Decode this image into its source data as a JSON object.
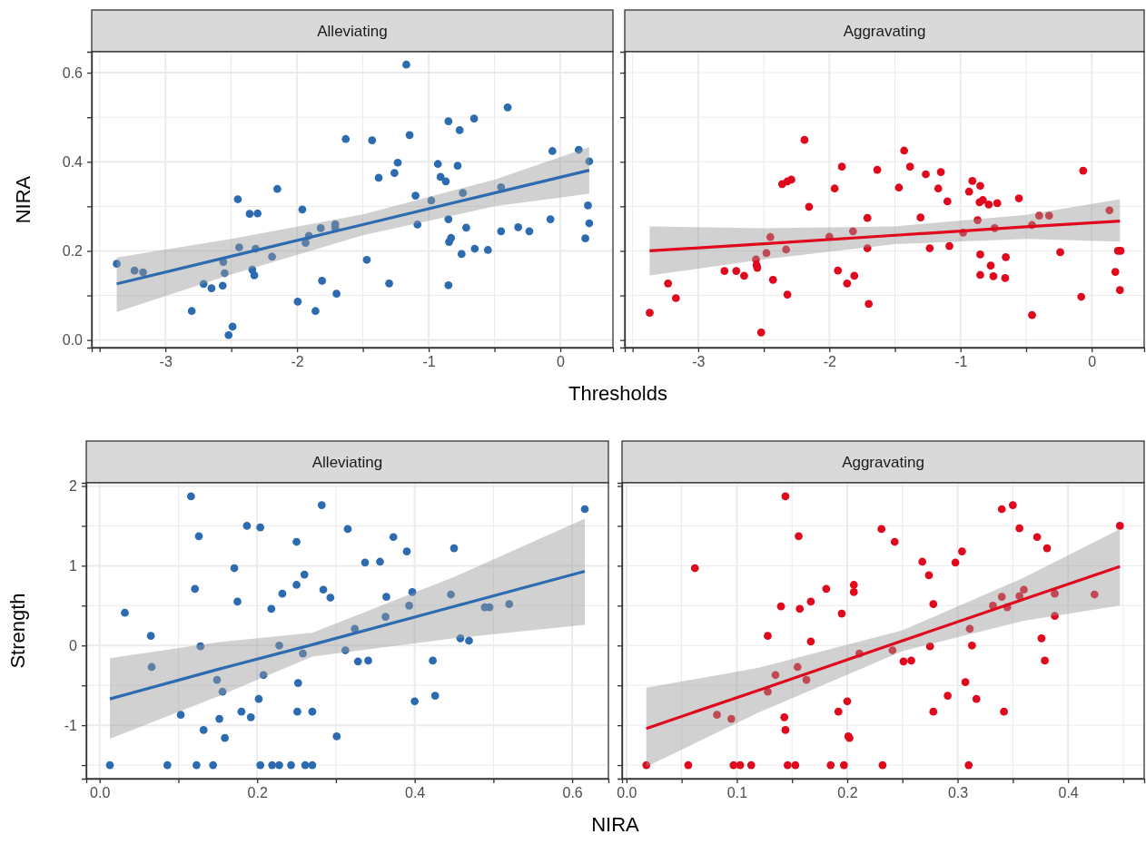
{
  "chart_data": [
    {
      "type": "scatter",
      "title": "Alleviating",
      "xlabel": "Thresholds",
      "ylabel": "NIRA",
      "grid": true,
      "xlim": [
        -3.56,
        0.4
      ],
      "xticks": [
        {
          "value": -3.5,
          "label": null
        },
        -3,
        {
          "value": -2.5,
          "label": null
        },
        -2,
        {
          "value": -1.5,
          "label": null
        },
        -1,
        {
          "value": -0.5,
          "label": null
        },
        0
      ],
      "ylim": [
        -0.017,
        0.647
      ],
      "yticks": [
        {
          "value": 0,
          "label": "0.0"
        },
        {
          "value": 0.1,
          "label": null
        },
        {
          "value": 0.2,
          "label": "0.2"
        },
        {
          "value": 0.3,
          "label": null
        },
        {
          "value": 0.4,
          "label": "0.4"
        },
        {
          "value": 0.5,
          "label": null
        },
        {
          "value": 0.6,
          "label": "0.6"
        }
      ],
      "series": [
        {
          "marker": "circle",
          "color": "#2c6bb0",
          "x": [
            -3.37,
            -3.235,
            -3.17,
            -2.8,
            -2.71,
            -2.65,
            -2.565,
            -2.56,
            -2.55,
            -2.52,
            -2.49,
            -2.45,
            -2.44,
            -2.36,
            -2.3,
            -2.34,
            -2.325,
            -2.315,
            -2.19,
            -2.15,
            -1.995,
            -1.96,
            -1.935,
            -1.91,
            -1.86,
            -1.82,
            -1.81,
            -1.71,
            -1.71,
            -1.7,
            -1.63,
            -1.47,
            -1.43,
            -1.38,
            -1.3,
            -1.26,
            -1.235,
            -1.17,
            -1.145,
            -1.1,
            -1.085,
            -0.98,
            -0.93,
            -0.91,
            -0.87,
            -0.85,
            -0.85,
            -0.85,
            -0.845,
            -0.83,
            -0.78,
            -0.765,
            -0.75,
            -0.74,
            -0.715,
            -0.655,
            -0.65,
            -0.55,
            -0.45,
            -0.45,
            -0.4,
            -0.32,
            -0.235,
            -0.075,
            -0.06,
            0.14,
            0.19,
            0.21,
            0.22,
            0.22
          ],
          "values": [
            0.171,
            0.156,
            0.152,
            0.065,
            0.126,
            0.116,
            0.122,
            0.175,
            0.15,
            0.011,
            0.03,
            0.316,
            0.208,
            0.283,
            0.284,
            0.158,
            0.145,
            0.205,
            0.187,
            0.339,
            0.086,
            0.293,
            0.218,
            0.234,
            0.065,
            0.251,
            0.133,
            0.26,
            0.252,
            0.104,
            0.451,
            0.18,
            0.448,
            0.364,
            0.127,
            0.375,
            0.398,
            0.618,
            0.46,
            0.324,
            0.259,
            0.313,
            0.395,
            0.366,
            0.356,
            0.123,
            0.271,
            0.491,
            0.22,
            0.229,
            0.391,
            0.471,
            0.193,
            0.33,
            0.252,
            0.497,
            0.205,
            0.202,
            0.244,
            0.343,
            0.522,
            0.253,
            0.244,
            0.271,
            0.424,
            0.427,
            0.228,
            0.302,
            0.262,
            0.401
          ]
        },
        {
          "type": "line",
          "color": "#2c6bb0",
          "x": [
            -3.37,
            -2.5,
            -1.5,
            -0.5,
            0.22
          ],
          "values": [
            0.126,
            0.188,
            0.259,
            0.33,
            0.381
          ],
          "lower": [
            0.063,
            0.147,
            0.235,
            0.3,
            0.328
          ],
          "upper": [
            0.185,
            0.227,
            0.282,
            0.36,
            0.433
          ]
        }
      ]
    },
    {
      "type": "scatter",
      "title": "Aggravating",
      "grid": true,
      "tick_labels": "x",
      "xlim": [
        -3.56,
        0.4
      ],
      "xticks": [
        {
          "value": -3.5,
          "label": null
        },
        -3,
        {
          "value": -2.5,
          "label": null
        },
        -2,
        {
          "value": -1.5,
          "label": null
        },
        -1,
        {
          "value": -0.5,
          "label": null
        },
        0
      ],
      "ylim": [
        -0.017,
        0.647
      ],
      "yticks": [
        {
          "value": 0,
          "label": null
        },
        {
          "value": 0.1,
          "label": null
        },
        {
          "value": 0.2,
          "label": null
        },
        {
          "value": 0.3,
          "label": null
        },
        {
          "value": 0.4,
          "label": null
        },
        {
          "value": 0.5,
          "label": null
        },
        {
          "value": 0.6,
          "label": null
        }
      ],
      "series": [
        {
          "marker": "circle",
          "color": "#e0081c",
          "x": [
            -3.37,
            -3.23,
            -3.17,
            -2.8,
            -2.71,
            -2.65,
            -2.56,
            -2.555,
            -2.55,
            -2.52,
            -2.48,
            -2.45,
            -2.43,
            -2.36,
            -2.32,
            -2.29,
            -2.33,
            -2.32,
            -2.19,
            -2.155,
            -2.0,
            -1.96,
            -1.935,
            -1.905,
            -1.865,
            -1.82,
            -1.81,
            -1.71,
            -1.71,
            -1.7,
            -1.635,
            -1.47,
            -1.43,
            -1.385,
            -1.305,
            -1.265,
            -1.235,
            -1.17,
            -1.15,
            -1.1,
            -1.085,
            -0.98,
            -0.935,
            -0.91,
            -0.87,
            -0.855,
            -0.85,
            -0.85,
            -0.85,
            -0.83,
            -0.785,
            -0.77,
            -0.75,
            -0.74,
            -0.72,
            -0.66,
            -0.655,
            -0.555,
            -0.455,
            -0.455,
            -0.4,
            -0.325,
            -0.24,
            -0.08,
            -0.065,
            0.135,
            0.18,
            0.2,
            0.22,
            0.215
          ],
          "values": [
            0.061,
            0.127,
            0.094,
            0.155,
            0.155,
            0.144,
            0.181,
            0.168,
            0.162,
            0.017,
            0.195,
            0.231,
            0.135,
            0.35,
            0.356,
            0.36,
            0.203,
            0.102,
            0.449,
            0.299,
            0.232,
            0.34,
            0.156,
            0.389,
            0.127,
            0.244,
            0.144,
            0.274,
            0.206,
            0.081,
            0.382,
            0.342,
            0.425,
            0.389,
            0.275,
            0.372,
            0.206,
            0.34,
            0.377,
            0.311,
            0.211,
            0.241,
            0.333,
            0.357,
            0.269,
            0.309,
            0.146,
            0.192,
            0.346,
            0.314,
            0.304,
            0.167,
            0.143,
            0.251,
            0.307,
            0.139,
            0.186,
            0.318,
            0.258,
            0.056,
            0.279,
            0.279,
            0.197,
            0.097,
            0.38,
            0.291,
            0.153,
            0.2,
            0.2,
            0.112
          ]
        },
        {
          "type": "line",
          "color": "#e0081c",
          "x": [
            -3.37,
            -2.5,
            -1.5,
            -0.5,
            0.215
          ],
          "values": [
            0.2,
            0.216,
            0.235,
            0.254,
            0.267
          ],
          "lower": [
            0.145,
            0.181,
            0.215,
            0.227,
            0.221
          ],
          "upper": [
            0.255,
            0.251,
            0.255,
            0.281,
            0.316
          ]
        }
      ]
    },
    {
      "type": "scatter",
      "title": "Alleviating",
      "xlabel": "NIRA",
      "ylabel": "Strength",
      "grid": true,
      "xlim": [
        -0.017,
        0.646
      ],
      "xticks": [
        {
          "value": 0,
          "label": "0.0"
        },
        {
          "value": 0.1,
          "label": null
        },
        {
          "value": 0.2,
          "label": "0.2"
        },
        {
          "value": 0.3,
          "label": null
        },
        {
          "value": 0.4,
          "label": "0.4"
        },
        {
          "value": 0.5,
          "label": null
        },
        {
          "value": 0.6,
          "label": "0.6"
        }
      ],
      "ylim": [
        -1.67,
        2.04
      ],
      "yticks": [
        {
          "value": -1.5,
          "label": null
        },
        -1,
        {
          "value": -0.5,
          "label": null
        },
        0,
        {
          "value": 0.5,
          "label": null
        },
        1,
        {
          "value": 1.5,
          "label": null
        },
        2
      ],
      "series": [
        {
          "marker": "circle",
          "color": "#2c6bb0",
          "x": [
            0.013,
            0.032,
            0.065,
            0.066,
            0.086,
            0.103,
            0.116,
            0.121,
            0.123,
            0.126,
            0.128,
            0.132,
            0.144,
            0.149,
            0.152,
            0.156,
            0.159,
            0.171,
            0.175,
            0.18,
            0.187,
            0.192,
            0.202,
            0.204,
            0.204,
            0.208,
            0.218,
            0.219,
            0.228,
            0.228,
            0.232,
            0.243,
            0.25,
            0.25,
            0.251,
            0.252,
            0.258,
            0.26,
            0.261,
            0.27,
            0.27,
            0.282,
            0.284,
            0.293,
            0.301,
            0.312,
            0.315,
            0.324,
            0.328,
            0.337,
            0.341,
            0.356,
            0.363,
            0.364,
            0.373,
            0.39,
            0.393,
            0.397,
            0.4,
            0.423,
            0.426,
            0.446,
            0.45,
            0.458,
            0.469,
            0.489,
            0.495,
            0.52,
            0.616
          ],
          "values": [
            -1.5,
            0.41,
            0.12,
            -0.27,
            -1.5,
            -0.87,
            1.87,
            0.71,
            -1.5,
            1.37,
            -0.01,
            -1.06,
            -1.5,
            -0.43,
            -0.92,
            -0.58,
            -1.16,
            0.97,
            0.55,
            -0.83,
            1.5,
            -0.9,
            -0.67,
            1.48,
            -1.5,
            -0.37,
            0.46,
            -1.5,
            -1.5,
            0.0,
            0.65,
            -1.5,
            1.3,
            0.76,
            -0.83,
            -0.47,
            -0.1,
            0.89,
            -1.5,
            -1.5,
            -0.83,
            1.76,
            0.7,
            0.6,
            -1.14,
            -0.06,
            1.46,
            0.21,
            -0.2,
            1.04,
            -0.19,
            1.05,
            0.36,
            0.61,
            1.36,
            1.18,
            0.5,
            0.67,
            -0.7,
            -0.19,
            -0.63,
            0.64,
            1.22,
            0.09,
            0.06,
            0.48,
            0.48,
            0.52,
            1.71
          ]
        },
        {
          "type": "line",
          "color": "#2c6bb0",
          "x": [
            0.013,
            0.15,
            0.27,
            0.45,
            0.616
          ],
          "values": [
            -0.67,
            -0.3,
            0.01,
            0.49,
            0.93
          ],
          "lower": [
            -1.17,
            -0.64,
            -0.14,
            0.09,
            0.26
          ],
          "upper": [
            -0.16,
            0.04,
            0.16,
            0.86,
            1.59
          ]
        }
      ]
    },
    {
      "type": "scatter",
      "title": "Aggravating",
      "grid": true,
      "tick_labels": "x",
      "xlim": [
        -0.004,
        0.469
      ],
      "xticks": [
        {
          "value": 0,
          "label": "0.0"
        },
        {
          "value": 0.05,
          "label": null
        },
        {
          "value": 0.1,
          "label": "0.1"
        },
        {
          "value": 0.15,
          "label": null
        },
        {
          "value": 0.2,
          "label": "0.2"
        },
        {
          "value": 0.25,
          "label": null
        },
        {
          "value": 0.3,
          "label": "0.3"
        },
        {
          "value": 0.35,
          "label": null
        },
        {
          "value": 0.4,
          "label": "0.4"
        },
        {
          "value": 0.45,
          "label": null
        }
      ],
      "ylim": [
        -1.67,
        2.04
      ],
      "yticks": [
        {
          "value": -1.5,
          "label": null
        },
        {
          "value": -1,
          "label": null
        },
        {
          "value": -0.5,
          "label": null
        },
        {
          "value": 0,
          "label": null
        },
        {
          "value": 0.5,
          "label": null
        },
        {
          "value": 1,
          "label": null
        },
        {
          "value": 1.5,
          "label": null
        },
        {
          "value": 2,
          "label": null
        }
      ],
      "series": [
        {
          "marker": "circle",
          "color": "#e0081c",
          "x": [
            0.018,
            0.056,
            0.062,
            0.082,
            0.095,
            0.097,
            0.103,
            0.113,
            0.128,
            0.128,
            0.135,
            0.14,
            0.143,
            0.144,
            0.144,
            0.146,
            0.153,
            0.155,
            0.156,
            0.157,
            0.163,
            0.167,
            0.167,
            0.181,
            0.185,
            0.192,
            0.195,
            0.197,
            0.2,
            0.201,
            0.202,
            0.206,
            0.206,
            0.211,
            0.231,
            0.232,
            0.241,
            0.243,
            0.251,
            0.258,
            0.268,
            0.274,
            0.275,
            0.278,
            0.278,
            0.291,
            0.298,
            0.304,
            0.307,
            0.31,
            0.311,
            0.313,
            0.317,
            0.332,
            0.34,
            0.34,
            0.342,
            0.345,
            0.35,
            0.356,
            0.356,
            0.36,
            0.372,
            0.376,
            0.379,
            0.381,
            0.388,
            0.388,
            0.424,
            0.447
          ],
          "values": [
            -1.5,
            -1.5,
            0.97,
            -0.87,
            -0.92,
            -1.5,
            -1.5,
            -1.5,
            -0.58,
            0.12,
            -0.37,
            0.49,
            -0.9,
            -1.06,
            1.87,
            -1.5,
            -1.5,
            -0.27,
            1.37,
            0.46,
            -0.43,
            0.55,
            0.05,
            0.71,
            -1.5,
            -0.83,
            0.4,
            -1.5,
            -0.7,
            -1.14,
            -1.16,
            0.76,
            0.67,
            -0.1,
            1.46,
            -1.5,
            -0.06,
            1.3,
            -0.2,
            -0.19,
            1.05,
            0.88,
            -0.01,
            -0.83,
            0.52,
            -0.63,
            1.04,
            1.18,
            -0.46,
            -1.5,
            0.21,
            0.0,
            -0.67,
            0.5,
            1.71,
            0.61,
            -0.83,
            0.48,
            1.76,
            0.62,
            1.47,
            0.7,
            1.36,
            0.09,
            -0.19,
            1.22,
            0.65,
            0.37,
            0.64,
            1.5
          ]
        },
        {
          "type": "line",
          "color": "#e0081c",
          "x": [
            0.018,
            0.12,
            0.25,
            0.36,
            0.447
          ],
          "values": [
            -1.04,
            -0.56,
            0.06,
            0.58,
            0.99
          ],
          "lower": [
            -1.52,
            -0.84,
            -0.07,
            0.31,
            0.5
          ],
          "upper": [
            -0.53,
            -0.28,
            0.19,
            0.85,
            1.46
          ]
        }
      ]
    }
  ]
}
